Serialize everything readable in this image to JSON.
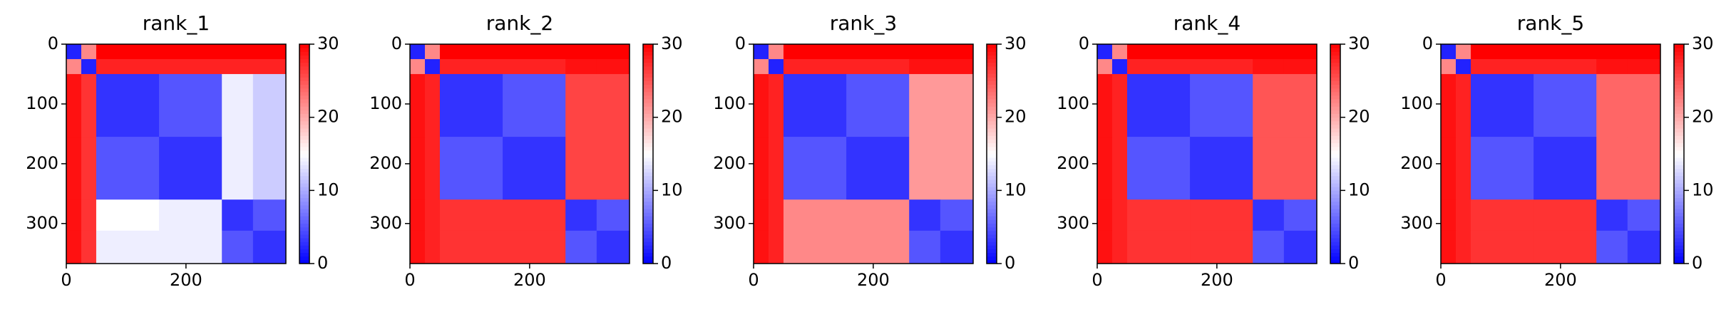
{
  "chart_data": [
    {
      "type": "heatmap",
      "title": "rank_1",
      "colormap": "bwr",
      "x_edges": [
        0,
        25,
        50,
        155,
        260,
        312,
        367
      ],
      "y_edges": [
        0,
        25,
        50,
        155,
        260,
        312,
        367
      ],
      "z": [
        [
          2,
          22,
          30,
          30,
          30,
          30
        ],
        [
          22,
          2,
          28,
          28,
          28,
          28
        ],
        [
          29,
          27,
          3,
          5,
          14,
          12
        ],
        [
          29,
          27,
          5,
          3,
          14,
          12
        ],
        [
          29,
          27,
          15,
          14,
          3,
          5
        ],
        [
          29,
          27,
          14,
          14,
          5,
          3
        ]
      ],
      "xlim": [
        0,
        367
      ],
      "ylim": [
        367,
        0
      ],
      "xticks": [
        0,
        200
      ],
      "yticks": [
        0,
        100,
        200,
        300
      ],
      "clim": [
        0,
        30
      ],
      "cticks": [
        0,
        10,
        20,
        30
      ]
    },
    {
      "type": "heatmap",
      "title": "rank_2",
      "colormap": "bwr",
      "x_edges": [
        0,
        25,
        50,
        155,
        260,
        312,
        367
      ],
      "y_edges": [
        0,
        25,
        50,
        155,
        260,
        312,
        367
      ],
      "z": [
        [
          2,
          22,
          30,
          30,
          30,
          30
        ],
        [
          22,
          2,
          28,
          28,
          29,
          29
        ],
        [
          29,
          28,
          3,
          5,
          26,
          26
        ],
        [
          29,
          28,
          5,
          3,
          26,
          26
        ],
        [
          29,
          28,
          27,
          27,
          3,
          5
        ],
        [
          29,
          28,
          27,
          27,
          5,
          3
        ]
      ],
      "xlim": [
        0,
        367
      ],
      "ylim": [
        367,
        0
      ],
      "xticks": [
        0,
        200
      ],
      "yticks": [
        0,
        100,
        200,
        300
      ],
      "clim": [
        0,
        30
      ],
      "cticks": [
        0,
        10,
        20,
        30
      ]
    },
    {
      "type": "heatmap",
      "title": "rank_3",
      "colormap": "bwr",
      "x_edges": [
        0,
        25,
        50,
        155,
        260,
        312,
        367
      ],
      "y_edges": [
        0,
        25,
        50,
        155,
        260,
        312,
        367
      ],
      "z": [
        [
          2,
          22,
          30,
          30,
          30,
          30
        ],
        [
          22,
          2,
          28,
          28,
          29,
          29
        ],
        [
          29,
          28,
          3,
          5,
          21,
          21
        ],
        [
          29,
          28,
          5,
          3,
          21,
          21
        ],
        [
          29,
          28,
          22,
          22,
          3,
          5
        ],
        [
          29,
          28,
          22,
          22,
          5,
          3
        ]
      ],
      "xlim": [
        0,
        367
      ],
      "ylim": [
        367,
        0
      ],
      "xticks": [
        0,
        200
      ],
      "yticks": [
        0,
        100,
        200,
        300
      ],
      "clim": [
        0,
        30
      ],
      "cticks": [
        0,
        10,
        20,
        30
      ]
    },
    {
      "type": "heatmap",
      "title": "rank_4",
      "colormap": "bwr",
      "x_edges": [
        0,
        25,
        50,
        155,
        260,
        312,
        367
      ],
      "y_edges": [
        0,
        25,
        50,
        155,
        260,
        312,
        367
      ],
      "z": [
        [
          2,
          22,
          30,
          30,
          30,
          30
        ],
        [
          22,
          2,
          28,
          28,
          29,
          29
        ],
        [
          29,
          28,
          3,
          5,
          25,
          25
        ],
        [
          29,
          28,
          5,
          3,
          25,
          25
        ],
        [
          29,
          28,
          27,
          27,
          3,
          5
        ],
        [
          29,
          28,
          27,
          27,
          5,
          3
        ]
      ],
      "xlim": [
        0,
        367
      ],
      "ylim": [
        367,
        0
      ],
      "xticks": [
        0,
        200
      ],
      "yticks": [
        0,
        100,
        200,
        300
      ],
      "clim": [
        0,
        30
      ],
      "cticks": [
        0,
        10,
        20,
        30
      ]
    },
    {
      "type": "heatmap",
      "title": "rank_5",
      "colormap": "bwr",
      "x_edges": [
        0,
        25,
        50,
        155,
        260,
        312,
        367
      ],
      "y_edges": [
        0,
        25,
        50,
        155,
        260,
        312,
        367
      ],
      "z": [
        [
          2,
          22,
          30,
          30,
          30,
          30
        ],
        [
          22,
          2,
          28,
          28,
          29,
          29
        ],
        [
          29,
          28,
          3,
          5,
          24,
          24
        ],
        [
          29,
          28,
          5,
          3,
          24,
          24
        ],
        [
          29,
          28,
          27,
          27,
          3,
          5
        ],
        [
          29,
          28,
          27,
          27,
          5,
          3
        ]
      ],
      "xlim": [
        0,
        367
      ],
      "ylim": [
        367,
        0
      ],
      "xticks": [
        0,
        200
      ],
      "yticks": [
        0,
        100,
        200,
        300
      ],
      "clim": [
        0,
        30
      ],
      "cticks": [
        0,
        10,
        20,
        30
      ]
    }
  ]
}
